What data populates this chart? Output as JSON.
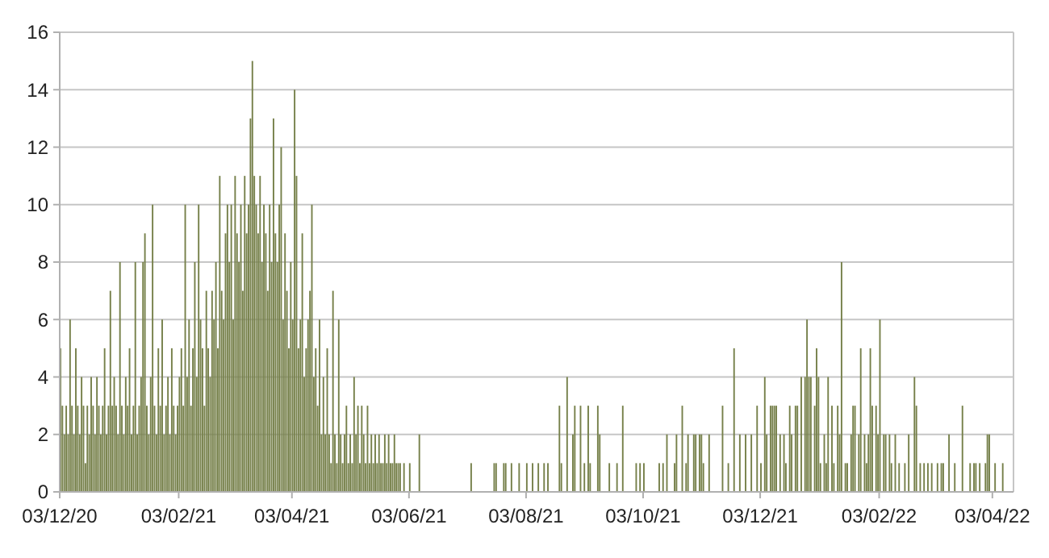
{
  "chart_data": {
    "type": "bar",
    "color": "#76804a",
    "x": [
      "2020-12-03",
      "2020-12-04",
      "2020-12-05",
      "2020-12-06",
      "2020-12-07",
      "2020-12-08",
      "2020-12-09",
      "2020-12-10",
      "2020-12-11",
      "2020-12-12",
      "2020-12-13",
      "2020-12-14",
      "2020-12-15",
      "2020-12-16",
      "2020-12-17",
      "2020-12-18",
      "2020-12-19",
      "2020-12-20",
      "2020-12-21",
      "2020-12-22",
      "2020-12-23",
      "2020-12-24",
      "2020-12-25",
      "2020-12-26",
      "2020-12-27",
      "2020-12-28",
      "2020-12-29",
      "2020-12-30",
      "2020-12-31",
      "2021-01-01",
      "2021-01-02",
      "2021-01-03",
      "2021-01-04",
      "2021-01-05",
      "2021-01-06",
      "2021-01-07",
      "2021-01-08",
      "2021-01-09",
      "2021-01-10",
      "2021-01-11",
      "2021-01-12",
      "2021-01-13",
      "2021-01-14",
      "2021-01-15",
      "2021-01-16",
      "2021-01-17",
      "2021-01-18",
      "2021-01-19",
      "2021-01-20",
      "2021-01-21",
      "2021-01-22",
      "2021-01-23",
      "2021-01-24",
      "2021-01-25",
      "2021-01-26",
      "2021-01-27",
      "2021-01-28",
      "2021-01-29",
      "2021-01-30",
      "2021-01-31",
      "2021-02-01",
      "2021-02-02",
      "2021-02-03",
      "2021-02-04",
      "2021-02-05",
      "2021-02-06",
      "2021-02-07",
      "2021-02-08",
      "2021-02-09",
      "2021-02-10",
      "2021-02-11",
      "2021-02-12",
      "2021-02-13",
      "2021-02-14",
      "2021-02-15",
      "2021-02-16",
      "2021-02-17",
      "2021-02-18",
      "2021-02-19",
      "2021-02-20",
      "2021-02-21",
      "2021-02-22",
      "2021-02-23",
      "2021-02-24",
      "2021-02-25",
      "2021-02-26",
      "2021-02-27",
      "2021-02-28",
      "2021-03-01",
      "2021-03-02",
      "2021-03-03",
      "2021-03-04",
      "2021-03-05",
      "2021-03-06",
      "2021-03-07",
      "2021-03-08",
      "2021-03-09",
      "2021-03-10",
      "2021-03-11",
      "2021-03-12",
      "2021-03-13",
      "2021-03-14",
      "2021-03-15",
      "2021-03-16",
      "2021-03-17",
      "2021-03-18",
      "2021-03-19",
      "2021-03-20",
      "2021-03-21",
      "2021-03-22",
      "2021-03-23",
      "2021-03-24",
      "2021-03-25",
      "2021-03-26",
      "2021-03-27",
      "2021-03-28",
      "2021-03-29",
      "2021-03-30",
      "2021-03-31",
      "2021-04-01",
      "2021-04-02",
      "2021-04-03",
      "2021-04-04",
      "2021-04-05",
      "2021-04-06",
      "2021-04-07",
      "2021-04-08",
      "2021-04-09",
      "2021-04-10",
      "2021-04-11",
      "2021-04-12",
      "2021-04-13",
      "2021-04-14",
      "2021-04-15",
      "2021-04-16",
      "2021-04-17",
      "2021-04-18",
      "2021-04-19",
      "2021-04-20",
      "2021-04-21",
      "2021-04-22",
      "2021-04-23",
      "2021-04-24",
      "2021-04-25",
      "2021-04-26",
      "2021-04-27",
      "2021-04-28",
      "2021-04-29",
      "2021-04-30",
      "2021-05-01",
      "2021-05-02",
      "2021-05-03",
      "2021-05-04",
      "2021-05-05",
      "2021-05-06",
      "2021-05-07",
      "2021-05-08",
      "2021-05-09",
      "2021-05-10",
      "2021-05-11",
      "2021-05-12",
      "2021-05-13",
      "2021-05-14",
      "2021-05-15",
      "2021-05-16",
      "2021-05-17",
      "2021-05-18",
      "2021-05-19",
      "2021-05-20",
      "2021-05-21",
      "2021-05-22",
      "2021-05-23",
      "2021-05-24",
      "2021-05-25",
      "2021-05-26",
      "2021-05-27",
      "2021-05-28",
      "2021-05-29",
      "2021-05-31",
      "2021-06-03",
      "2021-06-08",
      "2021-07-05",
      "2021-07-17",
      "2021-07-18",
      "2021-07-22",
      "2021-07-23",
      "2021-07-26",
      "2021-07-30",
      "2021-08-03",
      "2021-08-06",
      "2021-08-09",
      "2021-08-12",
      "2021-08-14",
      "2021-08-20",
      "2021-08-21",
      "2021-08-24",
      "2021-08-27",
      "2021-08-28",
      "2021-08-31",
      "2021-09-02",
      "2021-09-04",
      "2021-09-05",
      "2021-09-09",
      "2021-09-10",
      "2021-09-15",
      "2021-09-19",
      "2021-09-22",
      "2021-09-29",
      "2021-10-01",
      "2021-10-03",
      "2021-10-11",
      "2021-10-13",
      "2021-10-15",
      "2021-10-19",
      "2021-10-20",
      "2021-10-23",
      "2021-10-25",
      "2021-10-26",
      "2021-10-29",
      "2021-10-30",
      "2021-11-01",
      "2021-11-02",
      "2021-11-03",
      "2021-11-06",
      "2021-11-13",
      "2021-11-16",
      "2021-11-19",
      "2021-11-22",
      "2021-11-25",
      "2021-11-28",
      "2021-12-01",
      "2021-12-03",
      "2021-12-05",
      "2021-12-06",
      "2021-12-08",
      "2021-12-09",
      "2021-12-10",
      "2021-12-11",
      "2021-12-13",
      "2021-12-15",
      "2021-12-16",
      "2021-12-18",
      "2021-12-19",
      "2021-12-21",
      "2021-12-22",
      "2021-12-24",
      "2021-12-26",
      "2021-12-27",
      "2021-12-28",
      "2021-12-29",
      "2021-12-31",
      "2022-01-01",
      "2022-01-02",
      "2022-01-03",
      "2022-01-05",
      "2022-01-06",
      "2022-01-07",
      "2022-01-09",
      "2022-01-10",
      "2022-01-12",
      "2022-01-13",
      "2022-01-14",
      "2022-01-16",
      "2022-01-17",
      "2022-01-19",
      "2022-01-20",
      "2022-01-21",
      "2022-01-23",
      "2022-01-24",
      "2022-01-26",
      "2022-01-27",
      "2022-01-28",
      "2022-01-29",
      "2022-01-30",
      "2022-02-01",
      "2022-02-02",
      "2022-02-03",
      "2022-02-05",
      "2022-02-06",
      "2022-02-08",
      "2022-02-09",
      "2022-02-11",
      "2022-02-13",
      "2022-02-16",
      "2022-02-18",
      "2022-02-21",
      "2022-02-22",
      "2022-02-24",
      "2022-02-26",
      "2022-02-28",
      "2022-03-02",
      "2022-03-05",
      "2022-03-07",
      "2022-03-08",
      "2022-03-11",
      "2022-03-14",
      "2022-03-18",
      "2022-03-22",
      "2022-03-24",
      "2022-03-25",
      "2022-03-27",
      "2022-03-30",
      "2022-03-31",
      "2022-04-01",
      "2022-04-04",
      "2022-04-08"
    ],
    "values": [
      5,
      3,
      2,
      3,
      2,
      6,
      3,
      2,
      5,
      3,
      2,
      4,
      3,
      1,
      3,
      2,
      4,
      3,
      2,
      4,
      3,
      2,
      3,
      5,
      2,
      3,
      7,
      3,
      4,
      3,
      2,
      8,
      3,
      2,
      4,
      3,
      5,
      2,
      3,
      8,
      2,
      3,
      4,
      8,
      9,
      3,
      2,
      4,
      10,
      3,
      2,
      5,
      3,
      6,
      2,
      3,
      4,
      2,
      5,
      3,
      2,
      3,
      4,
      5,
      3,
      10,
      4,
      6,
      3,
      5,
      8,
      4,
      10,
      6,
      5,
      3,
      7,
      5,
      4,
      7,
      6,
      8,
      5,
      11,
      7,
      6,
      9,
      10,
      8,
      10,
      6,
      11,
      9,
      8,
      10,
      7,
      11,
      9,
      10,
      13,
      15,
      11,
      10,
      9,
      11,
      8,
      10,
      9,
      7,
      10,
      8,
      13,
      9,
      8,
      10,
      12,
      6,
      9,
      7,
      5,
      8,
      6,
      14,
      11,
      5,
      6,
      9,
      4,
      5,
      6,
      7,
      10,
      4,
      5,
      3,
      6,
      2,
      4,
      2,
      5,
      2,
      1,
      7,
      2,
      1,
      6,
      2,
      1,
      2,
      3,
      1,
      2,
      1,
      4,
      2,
      3,
      1,
      3,
      2,
      1,
      3,
      1,
      2,
      1,
      2,
      1,
      2,
      1,
      1,
      2,
      1,
      2,
      1,
      1,
      2,
      1,
      1,
      1,
      1,
      1,
      2,
      1,
      1,
      1,
      1,
      1,
      1,
      1,
      1,
      1,
      1,
      1,
      1,
      3,
      1,
      4,
      2,
      3,
      3,
      1,
      3,
      1,
      3,
      2,
      1,
      1,
      3,
      1,
      1,
      1,
      1,
      1,
      2,
      1,
      2,
      3,
      1,
      2,
      2,
      2,
      2,
      2,
      1,
      2,
      3,
      1,
      5,
      2,
      2,
      2,
      3,
      1,
      4,
      2,
      3,
      3,
      3,
      3,
      2,
      2,
      1,
      3,
      2,
      3,
      3,
      4,
      4,
      6,
      4,
      4,
      3,
      5,
      4,
      1,
      2,
      1,
      4,
      3,
      1,
      3,
      2,
      8,
      1,
      1,
      2,
      3,
      3,
      2,
      5,
      2,
      1,
      2,
      5,
      3,
      3,
      2,
      6,
      2,
      2,
      2,
      1,
      2,
      1,
      1,
      2,
      4,
      3,
      1,
      1,
      1,
      1,
      1,
      1,
      1,
      2,
      1,
      3,
      1,
      1,
      1,
      1,
      1,
      2,
      2,
      1,
      1
    ],
    "xlim": [
      "2020-12-03",
      "2022-04-14"
    ],
    "xticks": [
      {
        "value": "2020-12-03",
        "label": "03/12/20"
      },
      {
        "value": "2021-02-03",
        "label": "03/02/21"
      },
      {
        "value": "2021-04-03",
        "label": "03/04/21"
      },
      {
        "value": "2021-06-03",
        "label": "03/06/21"
      },
      {
        "value": "2021-08-03",
        "label": "03/08/21"
      },
      {
        "value": "2021-10-03",
        "label": "03/10/21"
      },
      {
        "value": "2021-12-03",
        "label": "03/12/21"
      },
      {
        "value": "2022-02-03",
        "label": "03/02/22"
      },
      {
        "value": "2022-04-03",
        "label": "03/04/22"
      }
    ],
    "ylim": [
      0,
      16
    ],
    "yticks": [
      0,
      2,
      4,
      6,
      8,
      10,
      12,
      14,
      16
    ],
    "grid": "y"
  }
}
